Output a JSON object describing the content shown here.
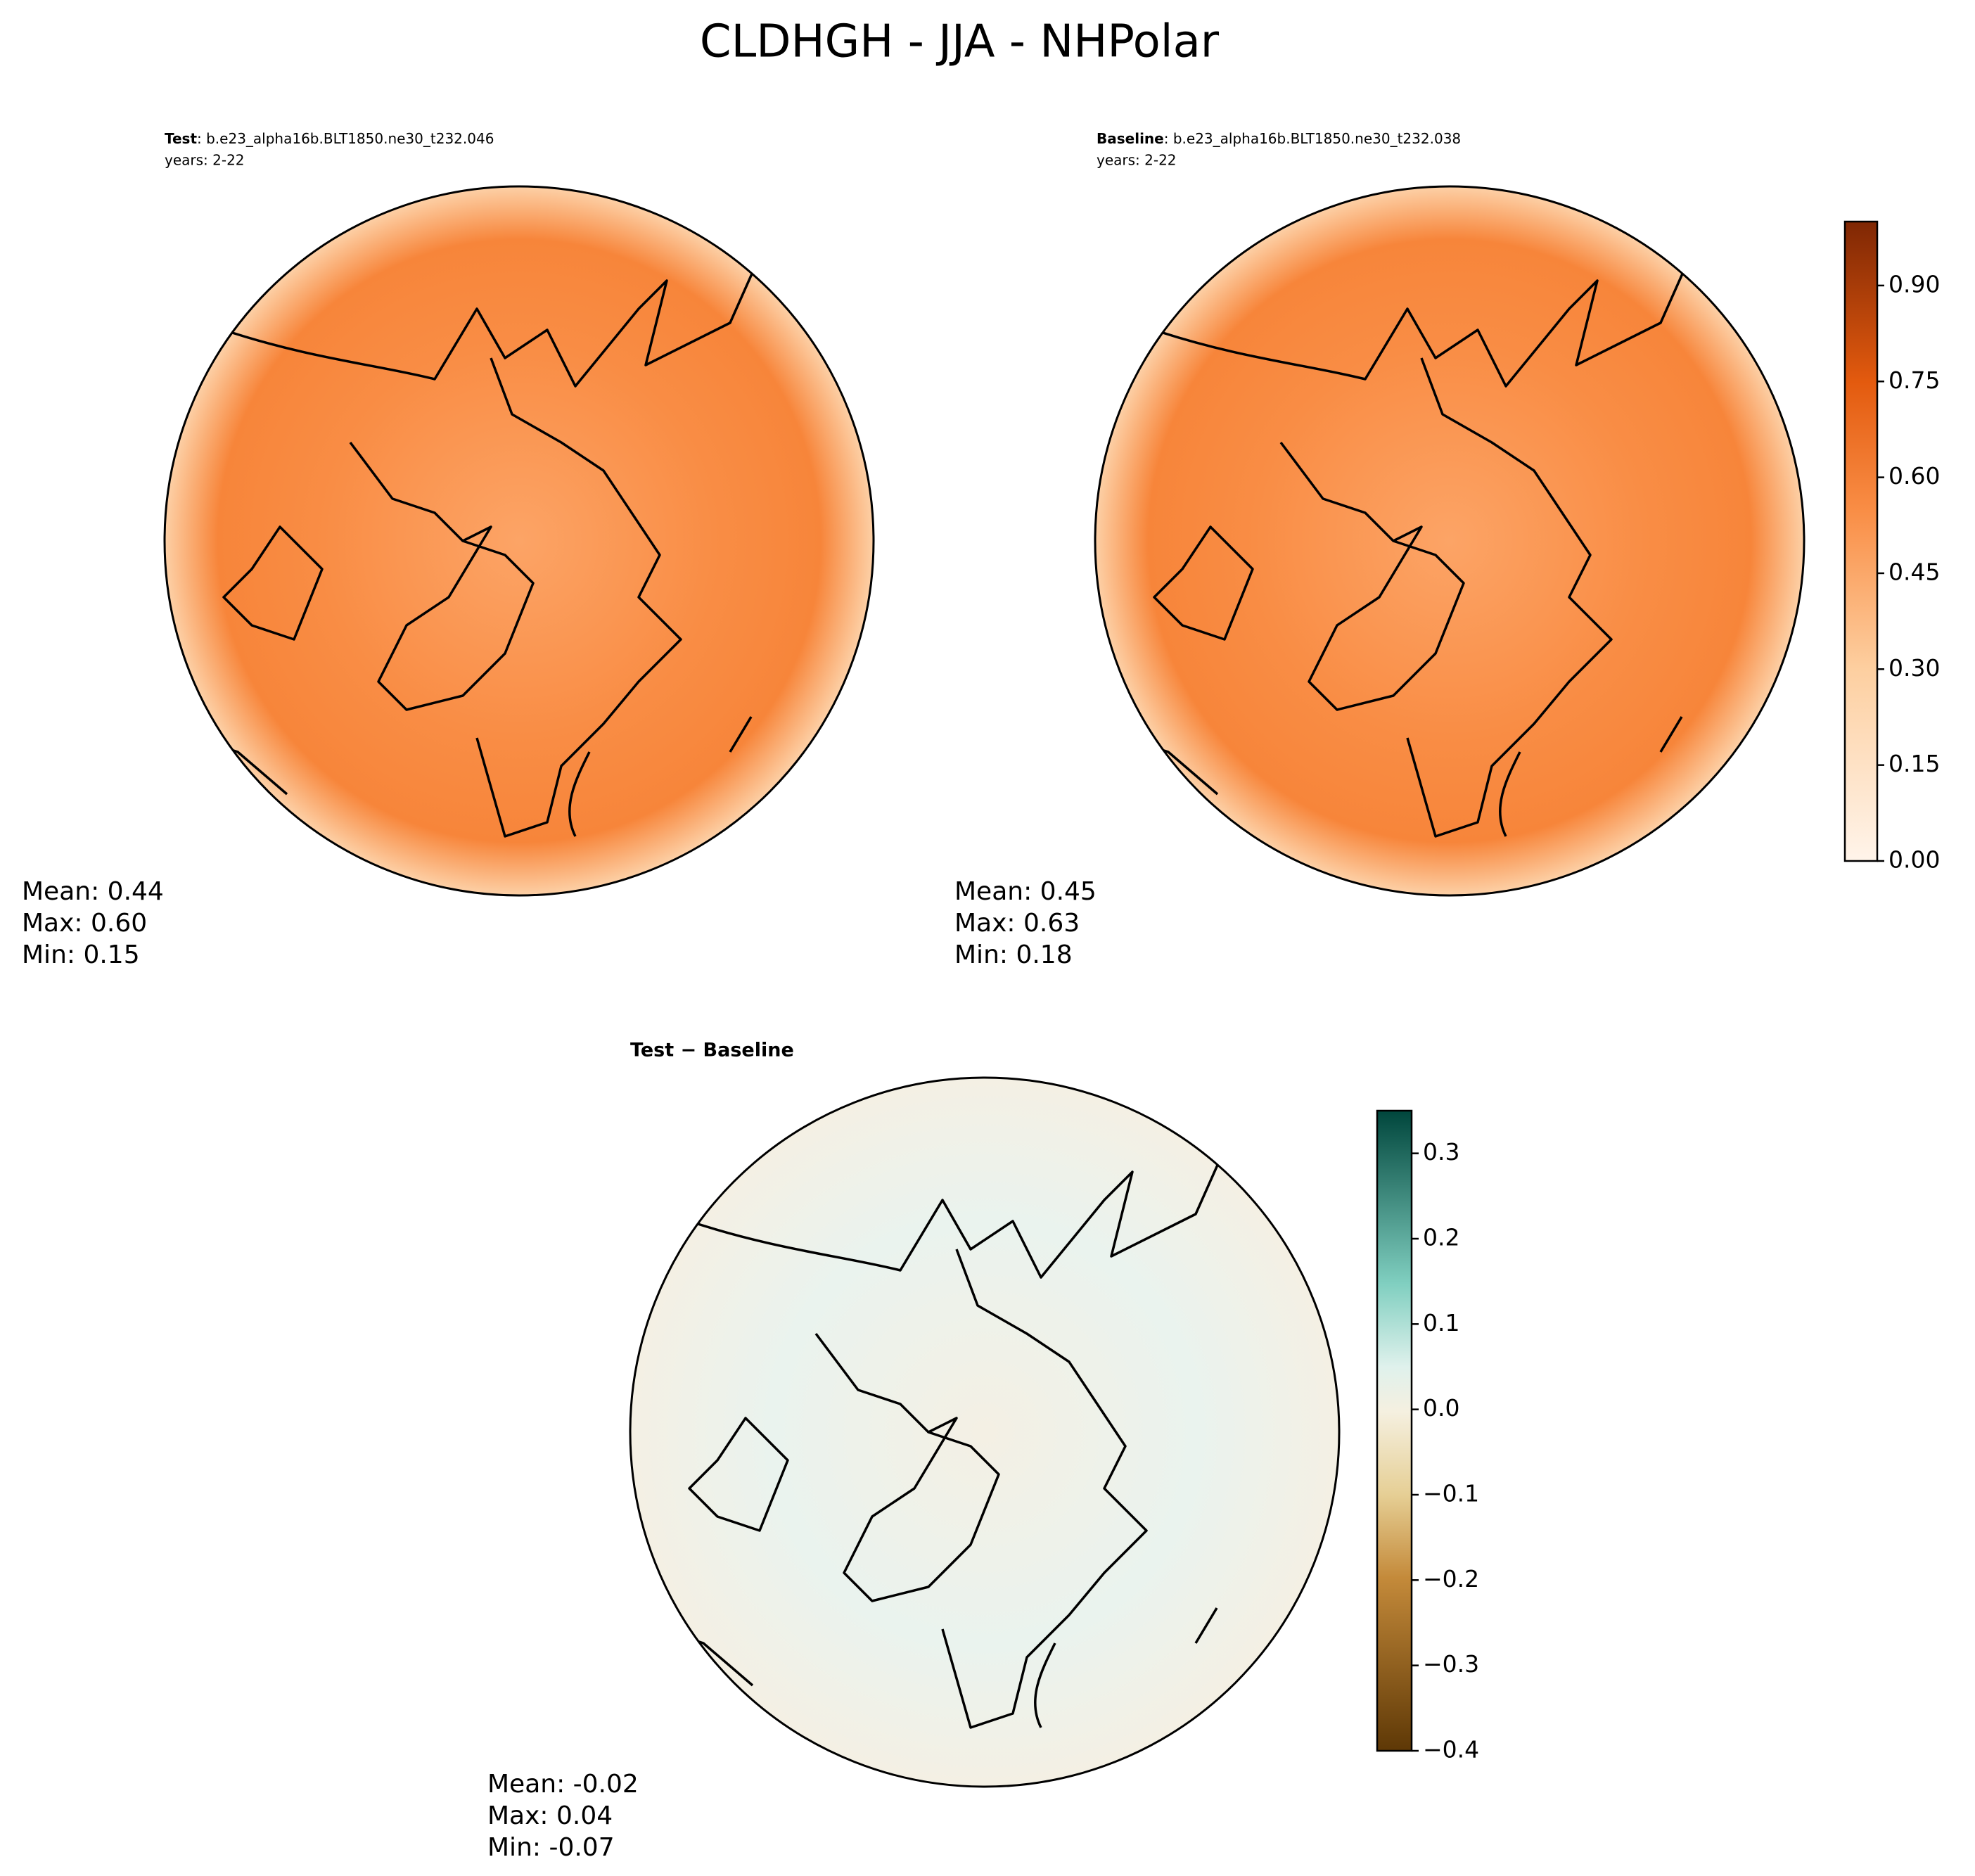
{
  "title": "CLDHGH - JJA - NHPolar",
  "panels": [
    {
      "label": "Test",
      "case": ": b.e23_alpha16b.BLT1850.ne30_t232.046",
      "years": "years: 2-22",
      "stats": [
        "Mean:  0.44",
        "Max:  0.60",
        "Min:  0.15"
      ]
    },
    {
      "label": "Baseline",
      "case": ": b.e23_alpha16b.BLT1850.ne30_t232.038",
      "years": "years: 2-22",
      "stats": [
        "Mean:  0.45",
        "Max:  0.63",
        "Min:  0.18"
      ]
    },
    {
      "label": "Test − Baseline",
      "stats": [
        "Mean: -0.02",
        "Max:  0.04",
        "Min: -0.07"
      ]
    }
  ],
  "colorbars": [
    {
      "lim": [
        0,
        1.0
      ],
      "ticks": [
        {
          "value": 0,
          "label": "0.00"
        },
        0.15,
        {
          "value": 0.3,
          "label": "0.30"
        },
        0.45,
        {
          "value": 0.6,
          "label": "0.60"
        },
        0.75,
        {
          "value": 0.9,
          "label": "0.90"
        }
      ]
    },
    {
      "lim": [
        -0.4,
        0.35
      ],
      "ticks": [
        {
          "value": -0.4,
          "label": "−0.4"
        },
        {
          "value": -0.3,
          "label": "−0.3"
        },
        {
          "value": -0.2,
          "label": "−0.2"
        },
        {
          "value": -0.1,
          "label": "−0.1"
        },
        {
          "value": 0,
          "label": "0.0"
        },
        0.1,
        0.2,
        0.3
      ]
    }
  ]
}
